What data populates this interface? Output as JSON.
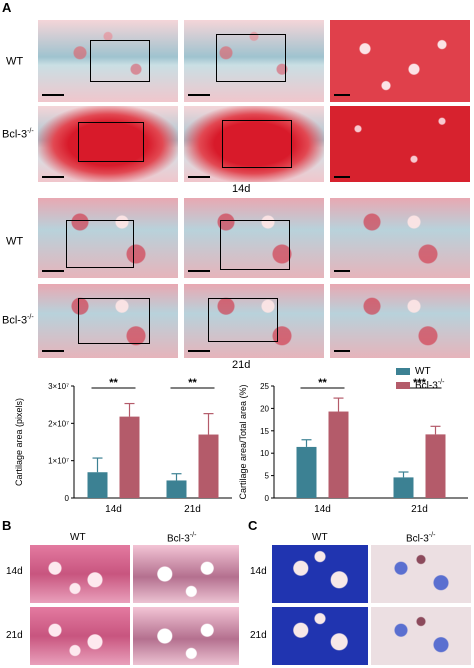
{
  "panels": {
    "A": "A",
    "B": "B",
    "C": "C"
  },
  "panelA": {
    "rows_14d": [
      {
        "label": "WT",
        "sup": ""
      },
      {
        "label": "Bcl-3",
        "sup": "-/-"
      }
    ],
    "timepoint_14d": "14d",
    "rows_21d": [
      {
        "label": "WT",
        "sup": ""
      },
      {
        "label": "Bcl-3",
        "sup": "-/-"
      }
    ],
    "timepoint_21d": "21d"
  },
  "chart_data": [
    {
      "type": "bar",
      "ylabel": "Cartilage area (pixels)",
      "categories": [
        "14d",
        "21d"
      ],
      "ylim": [
        0,
        30000000
      ],
      "ytick_labels": [
        "0",
        "1×10⁷",
        "2×10⁷",
        "3×10⁷"
      ],
      "ytick_values": [
        0,
        10000000,
        20000000,
        30000000
      ],
      "series": [
        {
          "name": "WT",
          "values": [
            6900000,
            4700000
          ],
          "errors": [
            3800000,
            1800000
          ],
          "color": "#3c8193"
        },
        {
          "name": "Bcl-3-/-",
          "values": [
            21800000,
            17000000
          ],
          "errors": [
            3500000,
            5600000
          ],
          "color": "#b45b6a"
        }
      ],
      "significance": [
        "**",
        "**"
      ]
    },
    {
      "type": "bar",
      "ylabel": "Cartilage area/Total area (%)",
      "categories": [
        "14d",
        "21d"
      ],
      "ylim": [
        0,
        25
      ],
      "ytick_labels": [
        "0",
        "5",
        "10",
        "15",
        "20",
        "25"
      ],
      "ytick_values": [
        0,
        5,
        10,
        15,
        20,
        25
      ],
      "series": [
        {
          "name": "WT",
          "values": [
            11.4,
            4.6
          ],
          "errors": [
            1.6,
            1.2
          ],
          "color": "#3c8193"
        },
        {
          "name": "Bcl-3-/-",
          "values": [
            19.3,
            14.2
          ],
          "errors": [
            3.0,
            1.8
          ],
          "color": "#b45b6a"
        }
      ],
      "significance": [
        "**",
        "***"
      ]
    }
  ],
  "legend": [
    {
      "label": "WT",
      "sup": "",
      "color": "#3c8193"
    },
    {
      "label": "Bcl-3",
      "sup": "-/-",
      "color": "#b45b6a"
    }
  ],
  "panelB": {
    "col_wt": "WT",
    "col_ko": "Bcl-3",
    "col_ko_sup": "-/-",
    "row_14d": "14d",
    "row_21d": "21d"
  },
  "panelC": {
    "col_wt": "WT",
    "col_ko": "Bcl-3",
    "col_ko_sup": "-/-",
    "row_14d": "14d",
    "row_21d": "21d"
  }
}
